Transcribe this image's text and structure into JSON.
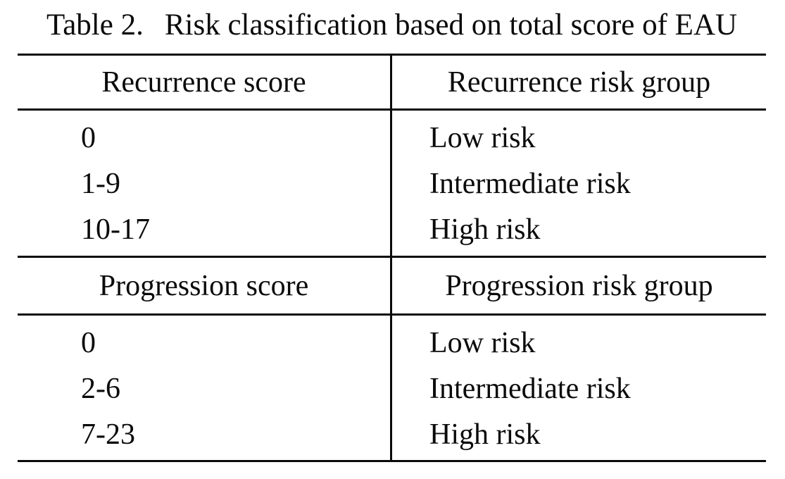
{
  "page": {
    "background_color": "#ffffff",
    "text_color": "#0b0b0b",
    "rule_color": "#0b0b0b"
  },
  "title": {
    "label": "Table 2.",
    "text": "Risk classification based on total score of EAU"
  },
  "table": {
    "sections": [
      {
        "header": {
          "col1": "Recurrence score",
          "col2": "Recurrence risk group"
        },
        "rows": [
          {
            "score": "0",
            "group": "Low risk"
          },
          {
            "score": "1-9",
            "group": "Intermediate risk"
          },
          {
            "score": "10-17",
            "group": "High risk"
          }
        ]
      },
      {
        "header": {
          "col1": "Progression score",
          "col2": "Progression risk group"
        },
        "rows": [
          {
            "score": "0",
            "group": "Low risk"
          },
          {
            "score": "2-6",
            "group": "Intermediate risk"
          },
          {
            "score": "7-23",
            "group": "High risk"
          }
        ]
      }
    ]
  }
}
